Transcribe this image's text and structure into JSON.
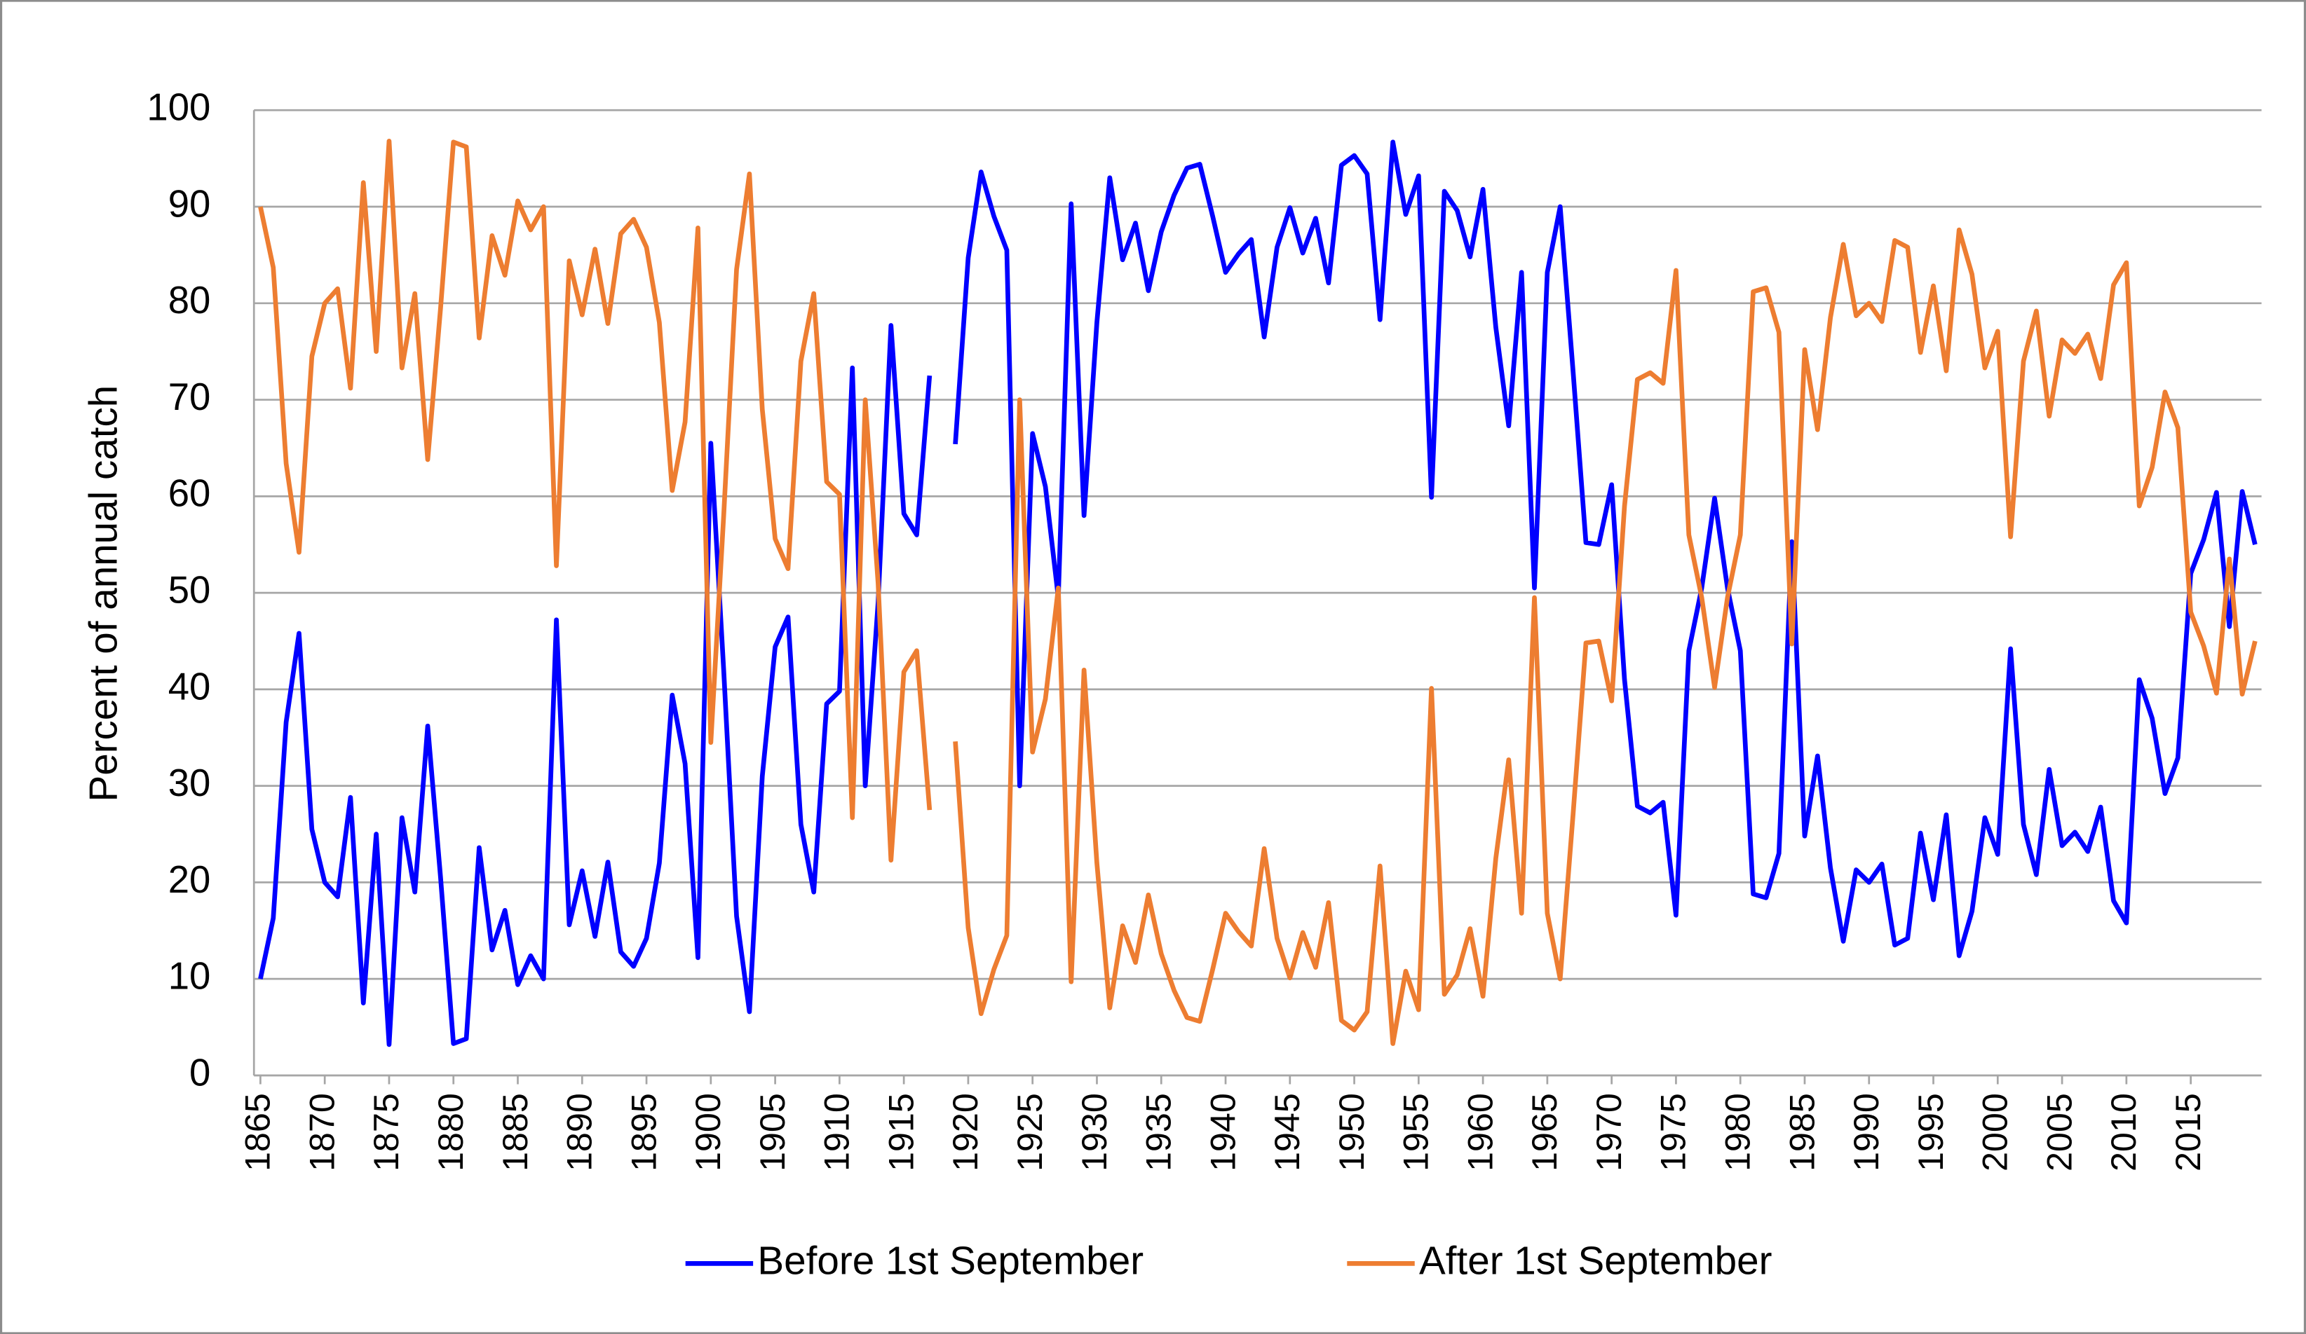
{
  "chart_data": {
    "type": "line",
    "y_label": "Percent of annual catch",
    "x": [
      1865,
      1866,
      1867,
      1868,
      1869,
      1870,
      1871,
      1872,
      1873,
      1874,
      1875,
      1876,
      1877,
      1878,
      1879,
      1880,
      1881,
      1882,
      1883,
      1884,
      1885,
      1886,
      1887,
      1888,
      1889,
      1890,
      1891,
      1892,
      1893,
      1894,
      1895,
      1896,
      1897,
      1898,
      1899,
      1900,
      1901,
      1902,
      1903,
      1904,
      1905,
      1906,
      1907,
      1908,
      1909,
      1910,
      1911,
      1912,
      1913,
      1914,
      1915,
      1916,
      1917,
      1918,
      1919,
      1920,
      1921,
      1922,
      1923,
      1924,
      1925,
      1926,
      1927,
      1928,
      1929,
      1930,
      1931,
      1932,
      1933,
      1934,
      1935,
      1936,
      1937,
      1938,
      1939,
      1940,
      1941,
      1942,
      1943,
      1944,
      1945,
      1946,
      1947,
      1948,
      1949,
      1950,
      1951,
      1952,
      1953,
      1954,
      1955,
      1956,
      1957,
      1958,
      1959,
      1960,
      1961,
      1962,
      1963,
      1964,
      1965,
      1966,
      1967,
      1968,
      1969,
      1970,
      1971,
      1972,
      1973,
      1974,
      1975,
      1976,
      1977,
      1978,
      1979,
      1980,
      1981,
      1982,
      1983,
      1984,
      1985,
      1986,
      1987,
      1988,
      1989,
      1990,
      1991,
      1992,
      1993,
      1994,
      1995,
      1996,
      1997,
      1998,
      1999,
      2000,
      2001,
      2002,
      2003,
      2004,
      2005,
      2006,
      2007,
      2008,
      2009,
      2010,
      2011,
      2012,
      2013,
      2014,
      2015,
      2016,
      2017,
      2018,
      2019,
      2020
    ],
    "series": [
      {
        "name": "Before 1st September",
        "color": "#0000ff",
        "values": [
          10,
          16.3,
          36.6,
          45.8,
          25.5,
          20,
          18.5,
          28.8,
          7.5,
          25,
          3.2,
          26.7,
          19,
          36.2,
          20.5,
          3.3,
          3.8,
          23.6,
          13,
          17.1,
          9.4,
          12.4,
          10,
          47.2,
          15.6,
          21.2,
          14.4,
          22.1,
          12.8,
          11.3,
          14.2,
          22,
          39.4,
          32.3,
          12.2,
          65.5,
          42,
          16.5,
          6.6,
          31,
          44.4,
          47.5,
          26,
          19,
          38.5,
          39.8,
          73.3,
          30,
          49,
          77.7,
          58.2,
          56,
          72.5,
          null,
          65.4,
          84.7,
          93.6,
          89,
          85.5,
          30,
          66.5,
          61,
          49.5,
          90.3,
          58,
          78,
          93,
          84.5,
          88.3,
          81.3,
          87.4,
          91.2,
          94,
          94.4,
          89,
          83.2,
          85.1,
          86.6,
          76.5,
          85.8,
          89.9,
          85.2,
          88.8,
          82.1,
          94.3,
          95.3,
          93.4,
          78.3,
          96.7,
          89.2,
          93.2,
          59.9,
          91.6,
          89.6,
          84.8,
          91.8,
          77.5,
          67.3,
          83.2,
          50.5,
          83.2,
          90,
          73,
          55.2,
          55,
          61.2,
          41,
          27.9,
          27.2,
          28.3,
          16.6,
          44,
          50.5,
          59.8,
          50.5,
          44,
          18.8,
          18.4,
          23,
          55.3,
          24.8,
          33.1,
          21.5,
          13.9,
          21.3,
          20,
          21.9,
          13.5,
          14.2,
          25.1,
          18.2,
          27,
          12.4,
          17,
          26.7,
          22.9,
          44.2,
          26,
          20.8,
          31.7,
          23.8,
          25.2,
          23.2,
          27.8,
          18.1,
          15.8,
          41,
          37,
          29.2,
          32.9,
          52,
          55.5,
          60.4,
          46.5,
          60.5,
          55
        ]
      },
      {
        "name": "After 1st September",
        "color": "#ed7d31",
        "values": [
          90,
          83.7,
          63.4,
          54.2,
          74.5,
          80,
          81.5,
          71.2,
          92.5,
          75,
          96.8,
          73.3,
          81,
          63.8,
          79.5,
          96.7,
          96.2,
          76.4,
          87,
          82.9,
          90.6,
          87.6,
          90,
          52.8,
          84.4,
          78.8,
          85.6,
          77.9,
          87.2,
          88.7,
          85.8,
          78,
          60.6,
          67.7,
          87.8,
          34.5,
          58,
          83.5,
          93.4,
          69,
          55.6,
          52.5,
          74,
          81,
          61.5,
          60.2,
          26.7,
          70,
          51,
          22.3,
          41.8,
          44,
          27.5,
          null,
          34.6,
          15.3,
          6.4,
          11,
          14.5,
          70,
          33.5,
          39,
          50.5,
          9.7,
          42,
          22,
          7,
          15.5,
          11.7,
          18.7,
          12.6,
          8.8,
          6,
          5.6,
          11,
          16.8,
          14.9,
          13.4,
          23.5,
          14.2,
          10.1,
          14.8,
          11.2,
          17.9,
          5.7,
          4.7,
          6.6,
          21.7,
          3.3,
          10.8,
          6.8,
          40.1,
          8.4,
          10.4,
          15.2,
          8.2,
          22.5,
          32.7,
          16.8,
          49.5,
          16.8,
          10,
          27,
          44.8,
          45,
          38.8,
          59,
          72.1,
          72.8,
          71.7,
          83.4,
          56,
          49.5,
          40.2,
          49.5,
          56,
          81.2,
          81.6,
          77,
          44.7,
          75.2,
          66.9,
          78.5,
          86.1,
          78.7,
          80,
          78.1,
          86.5,
          85.8,
          74.9,
          81.8,
          73,
          87.6,
          83,
          73.3,
          77.1,
          55.8,
          74,
          79.2,
          68.3,
          76.2,
          74.8,
          76.8,
          72.2,
          81.9,
          84.2,
          59,
          63,
          70.8,
          67.1,
          48,
          44.5,
          39.6,
          53.5,
          39.5,
          45
        ]
      }
    ],
    "xlim": [
      1864.5,
      2020.5
    ],
    "xticks": [
      1865,
      1870,
      1875,
      1880,
      1885,
      1890,
      1895,
      1900,
      1905,
      1910,
      1915,
      1920,
      1925,
      1930,
      1935,
      1940,
      1945,
      1950,
      1955,
      1960,
      1965,
      1970,
      1975,
      1980,
      1985,
      1990,
      1995,
      2000,
      2005,
      2010,
      2015
    ],
    "ylim": [
      0,
      100
    ],
    "yticks": [
      0,
      10,
      20,
      30,
      40,
      50,
      60,
      70,
      80,
      90,
      100
    ],
    "grid": true,
    "legend": "bottom"
  }
}
